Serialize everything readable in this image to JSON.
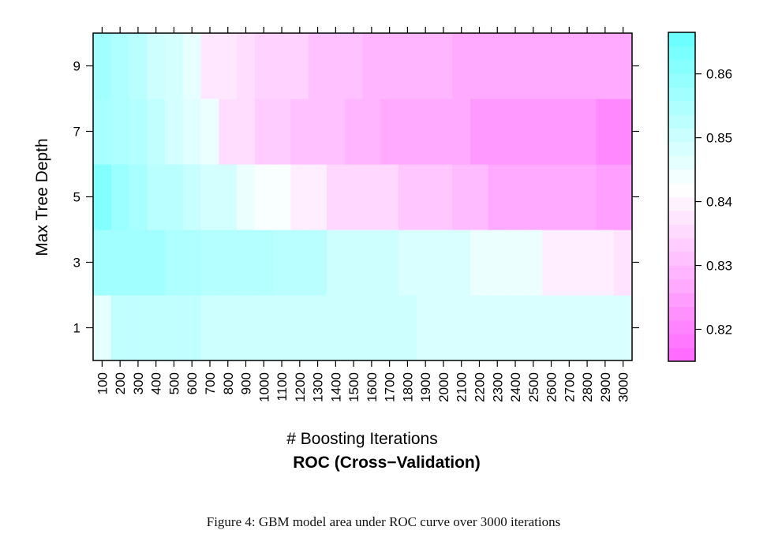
{
  "caption": "Figure 4: GBM model area under ROC curve over 3000 iterations",
  "chart_data": {
    "type": "heatmap",
    "title": "ROC (Cross−Validation)",
    "xlabel": "# Boosting Iterations",
    "ylabel": "Max Tree Depth",
    "x": [
      "100",
      "200",
      "300",
      "400",
      "500",
      "600",
      "700",
      "800",
      "900",
      "1000",
      "1100",
      "1200",
      "1300",
      "1400",
      "1500",
      "1600",
      "1700",
      "1800",
      "1900",
      "2000",
      "2100",
      "2200",
      "2300",
      "2400",
      "2500",
      "2600",
      "2700",
      "2800",
      "2900",
      "3000"
    ],
    "y": [
      1,
      3,
      5,
      7,
      9
    ],
    "y_ticks": [
      "1",
      "3",
      "5",
      "7",
      "9"
    ],
    "colorbar": {
      "ticks": [
        0.82,
        0.83,
        0.84,
        0.85,
        0.86
      ],
      "tick_labels": [
        "0.82",
        "0.83",
        "0.84",
        "0.85",
        "0.86"
      ],
      "range": [
        0.815,
        0.8665
      ],
      "low_color": "#ff66ff",
      "mid_color": "#ffffff",
      "high_color": "#66ffff",
      "mid_value": 0.842
    },
    "values": [
      [
        0.846,
        0.852,
        0.852,
        0.852,
        0.852,
        0.852,
        0.85,
        0.85,
        0.85,
        0.85,
        0.85,
        0.85,
        0.85,
        0.85,
        0.85,
        0.85,
        0.85,
        0.85,
        0.848,
        0.848,
        0.848,
        0.848,
        0.848,
        0.848,
        0.848,
        0.848,
        0.848,
        0.848,
        0.848,
        0.848
      ],
      [
        0.857,
        0.857,
        0.857,
        0.857,
        0.855,
        0.855,
        0.854,
        0.854,
        0.854,
        0.854,
        0.853,
        0.853,
        0.853,
        0.85,
        0.85,
        0.85,
        0.85,
        0.848,
        0.848,
        0.848,
        0.848,
        0.845,
        0.845,
        0.845,
        0.845,
        0.839,
        0.839,
        0.839,
        0.839,
        0.837
      ],
      [
        0.862,
        0.858,
        0.856,
        0.853,
        0.853,
        0.851,
        0.849,
        0.849,
        0.845,
        0.843,
        0.843,
        0.839,
        0.839,
        0.835,
        0.835,
        0.835,
        0.835,
        0.832,
        0.832,
        0.832,
        0.83,
        0.83,
        0.827,
        0.827,
        0.827,
        0.827,
        0.827,
        0.827,
        0.825,
        0.825
      ],
      [
        0.856,
        0.855,
        0.854,
        0.852,
        0.849,
        0.847,
        0.845,
        0.836,
        0.836,
        0.833,
        0.833,
        0.831,
        0.831,
        0.831,
        0.829,
        0.829,
        0.827,
        0.827,
        0.827,
        0.827,
        0.827,
        0.824,
        0.824,
        0.824,
        0.824,
        0.824,
        0.824,
        0.824,
        0.821,
        0.821
      ],
      [
        0.857,
        0.855,
        0.853,
        0.85,
        0.849,
        0.846,
        0.838,
        0.838,
        0.836,
        0.834,
        0.834,
        0.834,
        0.831,
        0.831,
        0.831,
        0.829,
        0.829,
        0.829,
        0.829,
        0.829,
        0.827,
        0.827,
        0.827,
        0.827,
        0.827,
        0.827,
        0.827,
        0.827,
        0.827,
        0.827
      ]
    ]
  }
}
